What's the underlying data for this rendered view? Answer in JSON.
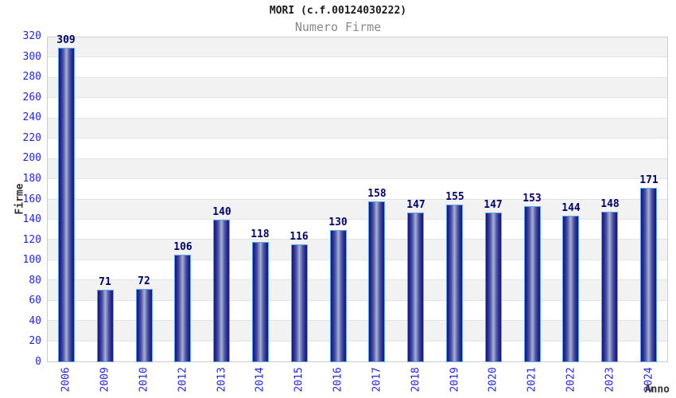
{
  "header": {
    "title": "MORI (c.f.00124030222)",
    "subtitle": "Numero Firme"
  },
  "chart_data": {
    "type": "bar",
    "title": "MORI (c.f.00124030222)",
    "subtitle": "Numero Firme",
    "xlabel": "Anno",
    "ylabel": "Firme",
    "categories": [
      "2006",
      "2009",
      "2010",
      "2012",
      "2013",
      "2014",
      "2015",
      "2016",
      "2017",
      "2018",
      "2019",
      "2020",
      "2021",
      "2022",
      "2023",
      "2024"
    ],
    "values": [
      309,
      71,
      72,
      106,
      140,
      118,
      116,
      130,
      158,
      147,
      155,
      147,
      153,
      144,
      148,
      171
    ],
    "ylim": [
      0,
      320
    ],
    "ytick_step": 20,
    "legend": "none",
    "grid": "alternating-horizontal-bands",
    "value_labels_shown": true,
    "colors": {
      "title": "#1a1a1a",
      "subtitle": "#888888",
      "tick_label": "#2424cc",
      "value_label": "#000066",
      "axis_title": "#333333",
      "bar_border": "#5ba4f2",
      "bar_dark": "#181873",
      "bar_light": "#a9b1d6",
      "band_gray": "#f2f2f2",
      "band_white": "#ffffff",
      "grid_line": "#e2e2e2",
      "plot_border": "#cccccc",
      "background": "#ffffff"
    }
  }
}
